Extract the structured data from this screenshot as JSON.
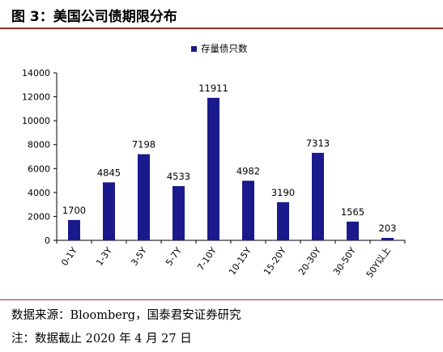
{
  "figure": {
    "title": "图 3：美国公司债期限分布"
  },
  "footer": {
    "source": "数据来源：Bloomberg，国泰君安证券研究",
    "note": "注：数据截止 2020 年 4 月 27 日"
  },
  "colors": {
    "bar": "#1a1a8c",
    "accent_line": "#9e2a2b"
  },
  "chart_data": {
    "type": "bar",
    "title": "",
    "xlabel": "",
    "ylabel": "",
    "categories": [
      "0-1Y",
      "1-3Y",
      "3-5Y",
      "5-7Y",
      "7-10Y",
      "10-15Y",
      "15-20Y",
      "20-30Y",
      "30-50Y",
      "50Y以上"
    ],
    "series": [
      {
        "name": "存量债只数",
        "values": [
          1700,
          4845,
          7198,
          4533,
          11911,
          4982,
          3190,
          7313,
          1565,
          203
        ]
      }
    ],
    "ylim": [
      0,
      14000
    ],
    "yticks": [
      0,
      2000,
      4000,
      6000,
      8000,
      10000,
      12000,
      14000
    ],
    "grid": false,
    "legend_position": "top-center",
    "data_labels": true
  }
}
